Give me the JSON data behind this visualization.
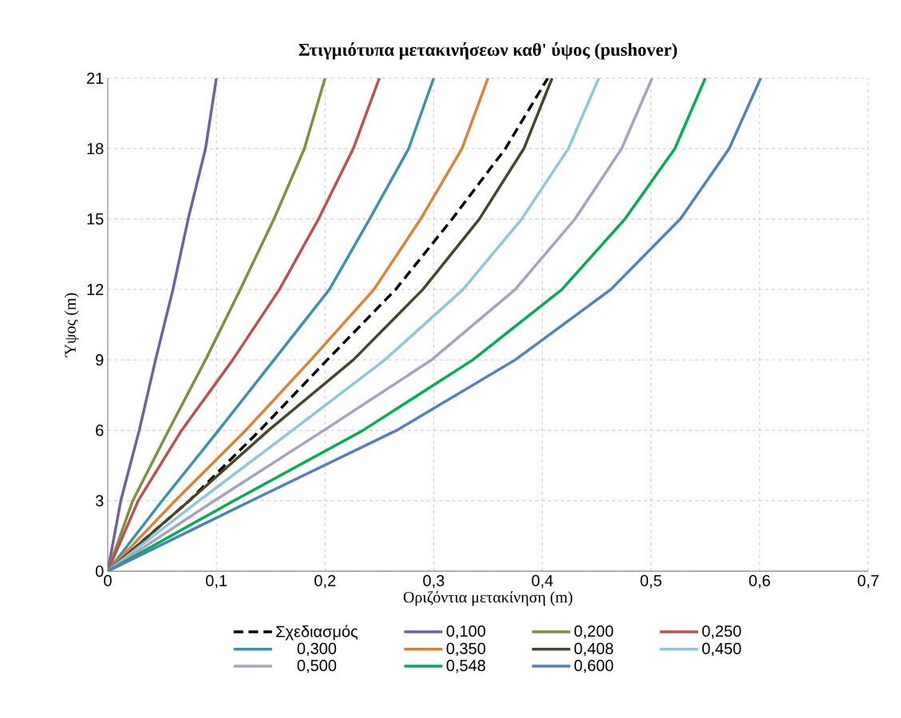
{
  "chart_data": {
    "type": "line",
    "title": "Στιγμιότυπα μετακινήσεων καθ' ύψος (pushover)",
    "xlabel": "Οριζόντια μετακίνηση (m)",
    "ylabel": "Ύψος (m)",
    "xlim": [
      0,
      0.7
    ],
    "ylim": [
      0,
      21
    ],
    "xticks": [
      {
        "value": 0,
        "label": "0"
      },
      {
        "value": 0.1,
        "label": "0,1"
      },
      {
        "value": 0.2,
        "label": "0,2"
      },
      {
        "value": 0.3,
        "label": "0,3"
      },
      {
        "value": 0.4,
        "label": "0,4"
      },
      {
        "value": 0.5,
        "label": "0,5"
      },
      {
        "value": 0.6,
        "label": "0,6"
      },
      {
        "value": 0.7,
        "label": "0,7"
      }
    ],
    "yticks": [
      0,
      3,
      6,
      9,
      12,
      15,
      18,
      21
    ],
    "grid": true,
    "legend": "bottom",
    "marker": "none",
    "series": [
      {
        "name": "Σχεδιασμός",
        "color": "#000000",
        "line_style": "dashed",
        "x": [
          0,
          0.075,
          0.14,
          0.202,
          0.265,
          0.317,
          0.366,
          0.405
        ],
        "values": [
          0,
          3,
          6,
          9,
          12,
          15,
          18,
          21
        ]
      },
      {
        "name": "0,100",
        "color": "#7060a0",
        "x": [
          0,
          0.012,
          0.029,
          0.044,
          0.06,
          0.074,
          0.09,
          0.1
        ],
        "values": [
          0,
          3,
          6,
          9,
          12,
          15,
          18,
          21
        ]
      },
      {
        "name": "0,200",
        "color": "#77933c",
        "x": [
          0,
          0.023,
          0.056,
          0.09,
          0.122,
          0.153,
          0.181,
          0.2
        ],
        "values": [
          0,
          3,
          6,
          9,
          12,
          15,
          18,
          21
        ]
      },
      {
        "name": "0,250",
        "color": "#c0504d",
        "x": [
          0,
          0.028,
          0.068,
          0.115,
          0.158,
          0.194,
          0.226,
          0.25
        ],
        "values": [
          0,
          3,
          6,
          9,
          12,
          15,
          18,
          21
        ]
      },
      {
        "name": "0,300",
        "color": "#3a93ad",
        "x": [
          0,
          0.05,
          0.102,
          0.153,
          0.204,
          0.241,
          0.277,
          0.3
        ],
        "values": [
          0,
          3,
          6,
          9,
          12,
          15,
          18,
          21
        ]
      },
      {
        "name": "0,350",
        "color": "#e0812f",
        "x": [
          0,
          0.062,
          0.127,
          0.187,
          0.245,
          0.288,
          0.326,
          0.35
        ],
        "values": [
          0,
          3,
          6,
          9,
          12,
          15,
          18,
          21
        ]
      },
      {
        "name": "0,408",
        "color": "#4a452a",
        "x": [
          0,
          0.075,
          0.148,
          0.226,
          0.29,
          0.342,
          0.383,
          0.409
        ],
        "values": [
          0,
          3,
          6,
          9,
          12,
          15,
          18,
          21
        ]
      },
      {
        "name": "0,450",
        "color": "#8ec7da",
        "x": [
          0,
          0.084,
          0.17,
          0.255,
          0.327,
          0.381,
          0.424,
          0.452
        ],
        "values": [
          0,
          3,
          6,
          9,
          12,
          15,
          18,
          21
        ]
      },
      {
        "name": "0,500",
        "color": "#a9a0c2",
        "x": [
          0,
          0.098,
          0.199,
          0.298,
          0.375,
          0.43,
          0.473,
          0.501
        ],
        "values": [
          0,
          3,
          6,
          9,
          12,
          15,
          18,
          21
        ]
      },
      {
        "name": "0,548",
        "color": "#00b050",
        "x": [
          0,
          0.116,
          0.235,
          0.336,
          0.418,
          0.476,
          0.522,
          0.55
        ],
        "values": [
          0,
          3,
          6,
          9,
          12,
          15,
          18,
          21
        ]
      },
      {
        "name": "0,600",
        "color": "#4f81bd",
        "x": [
          0,
          0.132,
          0.266,
          0.375,
          0.463,
          0.527,
          0.572,
          0.601
        ],
        "values": [
          0,
          3,
          6,
          9,
          12,
          15,
          18,
          21
        ]
      }
    ]
  }
}
